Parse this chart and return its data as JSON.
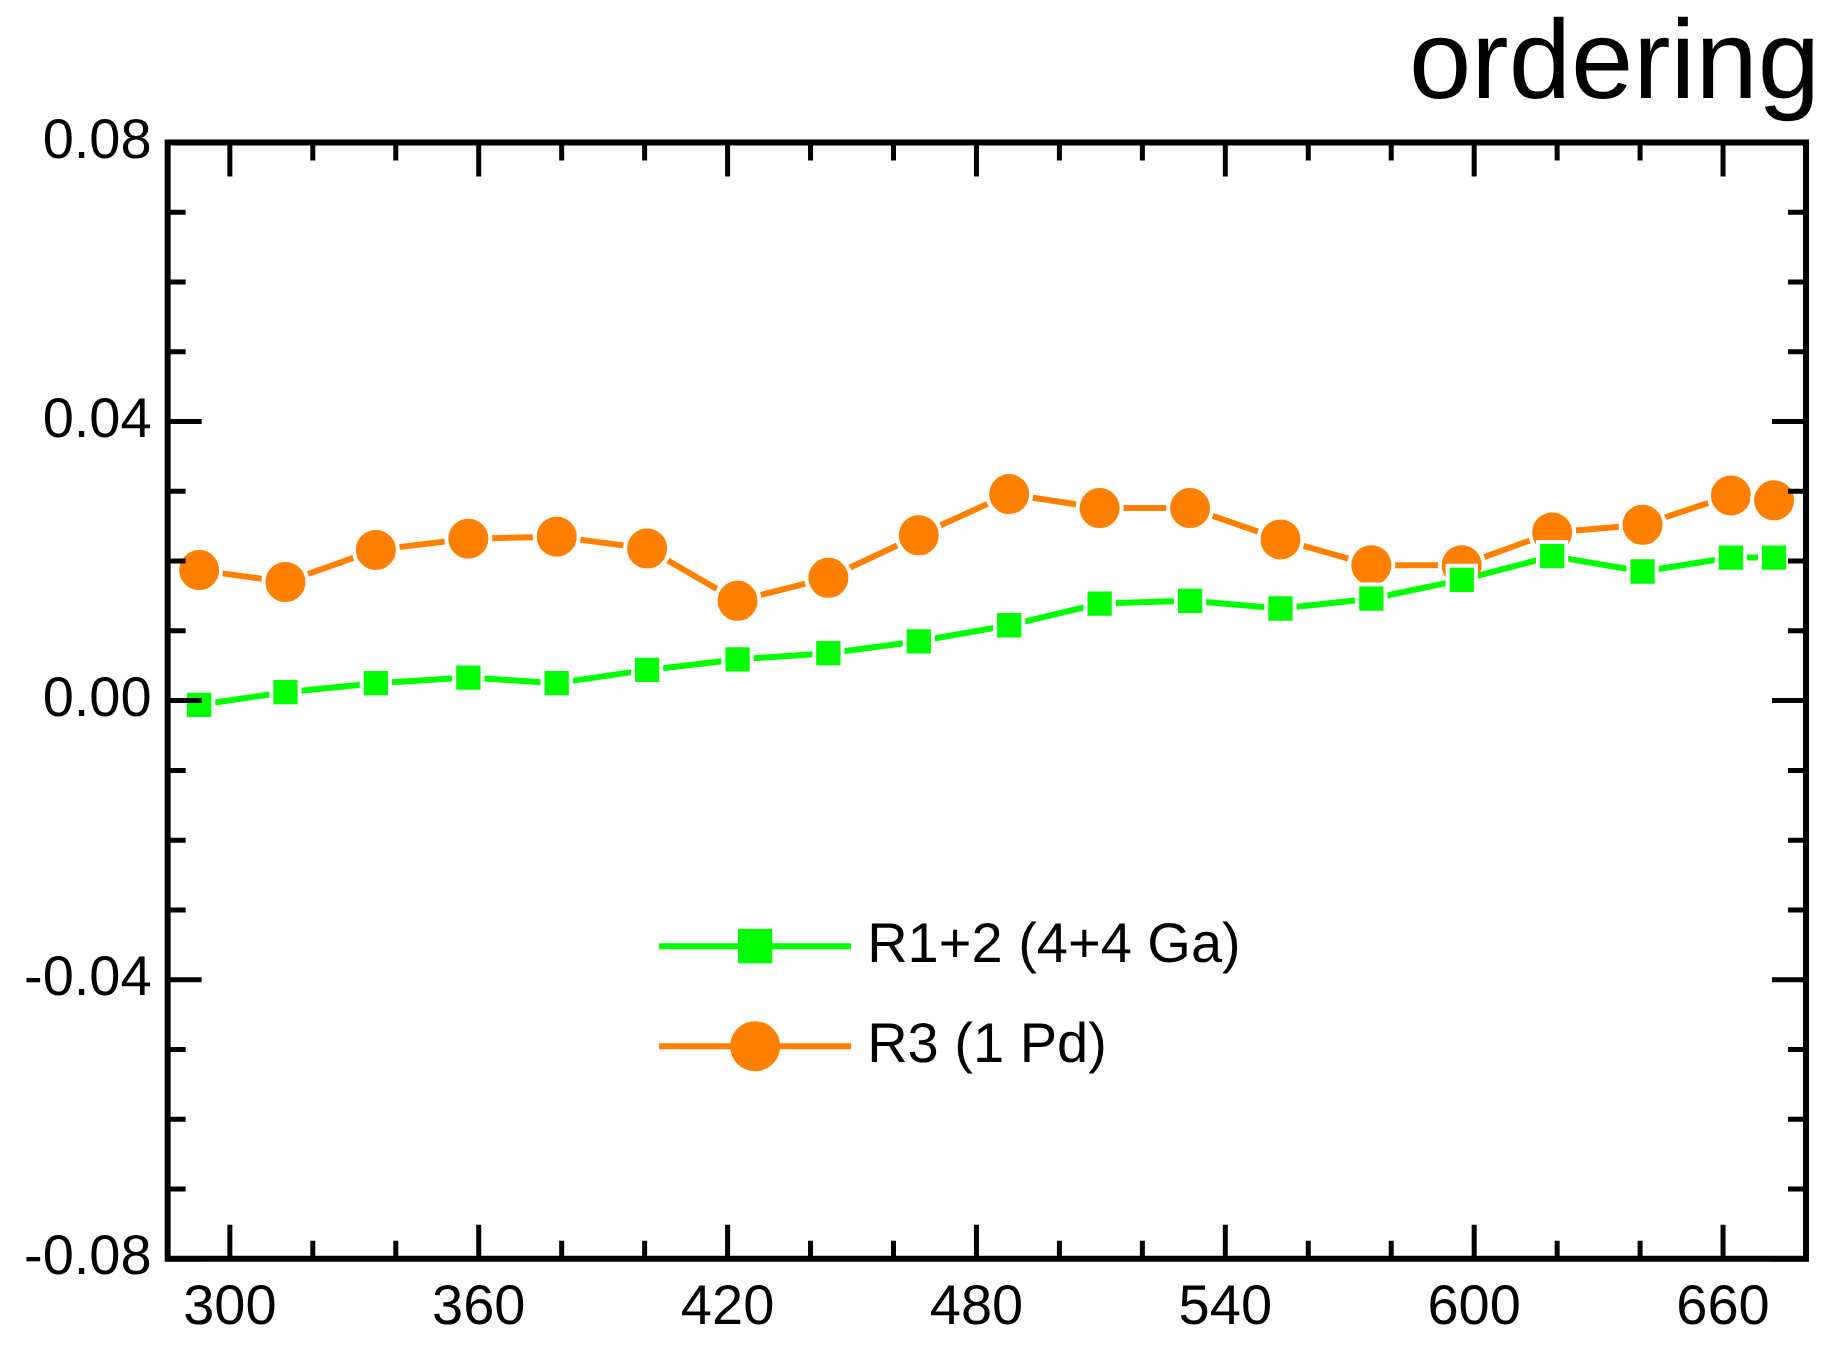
{
  "chart_data": {
    "type": "line",
    "title": "ordering",
    "x": [
      292.6,
      313.4,
      335.2,
      357.5,
      378.8,
      400.6,
      422.4,
      444.3,
      466.1,
      487.9,
      509.7,
      531.5,
      553.3,
      575.2,
      597,
      618.8,
      640.6,
      661.9,
      672.3
    ],
    "series": [
      {
        "name": "R1+2 (4+4 Ga)",
        "color": "#00ff00",
        "marker": "square",
        "values": [
          -0.0006,
          0.0012,
          0.0025,
          0.0033,
          0.0025,
          0.0044,
          0.0059,
          0.0068,
          0.0085,
          0.0108,
          0.0139,
          0.0143,
          0.0132,
          0.0146,
          0.0173,
          0.0207,
          0.0185,
          0.0205,
          0.0205
        ]
      },
      {
        "name": "R3 (1 Pd)",
        "color": "#ff8000",
        "marker": "circle",
        "values": [
          0.0187,
          0.017,
          0.0216,
          0.0232,
          0.0235,
          0.0218,
          0.0143,
          0.0176,
          0.0237,
          0.0296,
          0.0276,
          0.0276,
          0.0231,
          0.0194,
          0.0194,
          0.0241,
          0.0252,
          0.0294,
          0.0287
        ]
      }
    ],
    "xlim": [
      285,
      680
    ],
    "xticks": [
      300,
      {
        "value": 320,
        "label": null
      },
      {
        "value": 340,
        "label": null
      },
      360,
      {
        "value": 380,
        "label": null
      },
      {
        "value": 400,
        "label": null
      },
      420,
      {
        "value": 440,
        "label": null
      },
      {
        "value": 460,
        "label": null
      },
      480,
      {
        "value": 500,
        "label": null
      },
      {
        "value": 520,
        "label": null
      },
      540,
      {
        "value": 560,
        "label": null
      },
      {
        "value": 580,
        "label": null
      },
      600,
      {
        "value": 620,
        "label": null
      },
      {
        "value": 640,
        "label": null
      },
      660
    ],
    "ylim": [
      -0.08,
      0.08
    ],
    "yticks": [
      {
        "value": -0.08,
        "label": "-0.08"
      },
      {
        "value": -0.07,
        "label": null
      },
      {
        "value": -0.06,
        "label": null
      },
      {
        "value": -0.05,
        "label": null
      },
      {
        "value": -0.04,
        "label": "-0.04"
      },
      {
        "value": -0.03,
        "label": null
      },
      {
        "value": -0.02,
        "label": null
      },
      {
        "value": -0.01,
        "label": null
      },
      {
        "value": 0,
        "label": "0.00"
      },
      {
        "value": 0.01,
        "label": null
      },
      {
        "value": 0.02,
        "label": null
      },
      {
        "value": 0.03,
        "label": null
      },
      {
        "value": 0.04,
        "label": "0.04"
      },
      {
        "value": 0.05,
        "label": null
      },
      {
        "value": 0.06,
        "label": null
      },
      {
        "value": 0.07,
        "label": null
      },
      {
        "value": 0.08,
        "label": "0.08"
      }
    ],
    "legend": "center",
    "line_style": "solid"
  }
}
